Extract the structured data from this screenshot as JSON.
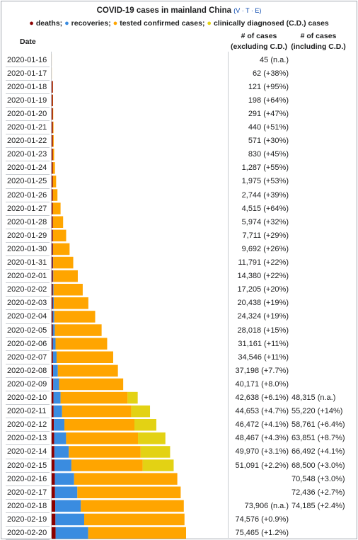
{
  "chart_data": {
    "type": "bar",
    "title": "COVID-19 cases in mainland China",
    "title_links": "V · T · E",
    "legend": [
      {
        "label": "deaths",
        "color": "#8b0000"
      },
      {
        "label": "recoveries",
        "color": "#3a8ce0"
      },
      {
        "label": "tested confirmed cases",
        "color": "#ffa500"
      },
      {
        "label": "clinically diagnosed (C.D.) cases",
        "color": "#e3d214"
      }
    ],
    "columns": {
      "date": "Date",
      "excl": "# of cases (excluding C.D.)",
      "incl": "# of cases (including C.D.)"
    },
    "rows": [
      {
        "date": "2020-01-16",
        "deaths": 0,
        "recovered": 0,
        "confirmed": 45,
        "cd": 0,
        "excl": "45 (n.a.)",
        "incl": ""
      },
      {
        "date": "2020-01-17",
        "deaths": 0,
        "recovered": 0,
        "confirmed": 62,
        "cd": 0,
        "excl": "62 (+38%)",
        "incl": ""
      },
      {
        "date": "2020-01-18",
        "deaths": 3,
        "recovered": 0,
        "confirmed": 118,
        "cd": 0,
        "excl": "121 (+95%)",
        "incl": ""
      },
      {
        "date": "2020-01-19",
        "deaths": 3,
        "recovered": 25,
        "confirmed": 170,
        "cd": 0,
        "excl": "198 (+64%)",
        "incl": ""
      },
      {
        "date": "2020-01-20",
        "deaths": 6,
        "recovered": 25,
        "confirmed": 260,
        "cd": 0,
        "excl": "291 (+47%)",
        "incl": ""
      },
      {
        "date": "2020-01-21",
        "deaths": 9,
        "recovered": 25,
        "confirmed": 406,
        "cd": 0,
        "excl": "440 (+51%)",
        "incl": ""
      },
      {
        "date": "2020-01-22",
        "deaths": 17,
        "recovered": 25,
        "confirmed": 529,
        "cd": 0,
        "excl": "571 (+30%)",
        "incl": ""
      },
      {
        "date": "2020-01-23",
        "deaths": 25,
        "recovered": 34,
        "confirmed": 771,
        "cd": 0,
        "excl": "830 (+45%)",
        "incl": ""
      },
      {
        "date": "2020-01-24",
        "deaths": 41,
        "recovered": 38,
        "confirmed": 1208,
        "cd": 0,
        "excl": "1,287 (+55%)",
        "incl": ""
      },
      {
        "date": "2020-01-25",
        "deaths": 56,
        "recovered": 49,
        "confirmed": 1870,
        "cd": 0,
        "excl": "1,975 (+53%)",
        "incl": ""
      },
      {
        "date": "2020-01-26",
        "deaths": 80,
        "recovered": 51,
        "confirmed": 2613,
        "cd": 0,
        "excl": "2,744 (+39%)",
        "incl": ""
      },
      {
        "date": "2020-01-27",
        "deaths": 106,
        "recovered": 60,
        "confirmed": 4349,
        "cd": 0,
        "excl": "4,515 (+64%)",
        "incl": ""
      },
      {
        "date": "2020-01-28",
        "deaths": 132,
        "recovered": 103,
        "confirmed": 5739,
        "cd": 0,
        "excl": "5,974 (+32%)",
        "incl": ""
      },
      {
        "date": "2020-01-29",
        "deaths": 170,
        "recovered": 124,
        "confirmed": 7417,
        "cd": 0,
        "excl": "7,711 (+29%)",
        "incl": ""
      },
      {
        "date": "2020-01-30",
        "deaths": 213,
        "recovered": 171,
        "confirmed": 9308,
        "cd": 0,
        "excl": "9,692 (+26%)",
        "incl": ""
      },
      {
        "date": "2020-01-31",
        "deaths": 259,
        "recovered": 243,
        "confirmed": 11289,
        "cd": 0,
        "excl": "11,791 (+22%)",
        "incl": ""
      },
      {
        "date": "2020-02-01",
        "deaths": 304,
        "recovered": 328,
        "confirmed": 13748,
        "cd": 0,
        "excl": "14,380 (+22%)",
        "incl": ""
      },
      {
        "date": "2020-02-02",
        "deaths": 361,
        "recovered": 475,
        "confirmed": 16369,
        "cd": 0,
        "excl": "17,205 (+20%)",
        "incl": ""
      },
      {
        "date": "2020-02-03",
        "deaths": 425,
        "recovered": 632,
        "confirmed": 19381,
        "cd": 0,
        "excl": "20,438 (+19%)",
        "incl": ""
      },
      {
        "date": "2020-02-04",
        "deaths": 490,
        "recovered": 892,
        "confirmed": 22942,
        "cd": 0,
        "excl": "24,324 (+19%)",
        "incl": ""
      },
      {
        "date": "2020-02-05",
        "deaths": 563,
        "recovered": 1153,
        "confirmed": 26302,
        "cd": 0,
        "excl": "28,018 (+15%)",
        "incl": ""
      },
      {
        "date": "2020-02-06",
        "deaths": 636,
        "recovered": 1540,
        "confirmed": 28985,
        "cd": 0,
        "excl": "31,161 (+11%)",
        "incl": ""
      },
      {
        "date": "2020-02-07",
        "deaths": 722,
        "recovered": 2050,
        "confirmed": 31774,
        "cd": 0,
        "excl": "34,546 (+11%)",
        "incl": ""
      },
      {
        "date": "2020-02-08",
        "deaths": 811,
        "recovered": 2649,
        "confirmed": 33738,
        "cd": 0,
        "excl": "37,198 (+7.7%)",
        "incl": ""
      },
      {
        "date": "2020-02-09",
        "deaths": 908,
        "recovered": 3281,
        "confirmed": 35982,
        "cd": 0,
        "excl": "40,171 (+8.0%)",
        "incl": ""
      },
      {
        "date": "2020-02-10",
        "deaths": 1016,
        "recovered": 3996,
        "confirmed": 37626,
        "cd": 5677,
        "excl": "42,638 (+6.1%)",
        "incl": "48,315 (n.a.)"
      },
      {
        "date": "2020-02-11",
        "deaths": 1113,
        "recovered": 4740,
        "confirmed": 38800,
        "cd": 10567,
        "excl": "44,653 (+4.7%)",
        "incl": "55,220 (+14%)"
      },
      {
        "date": "2020-02-12",
        "deaths": 1259,
        "recovered": 5911,
        "confirmed": 39302,
        "cd": 12289,
        "excl": "46,472 (+4.1%)",
        "incl": "58,761 (+6.4%)"
      },
      {
        "date": "2020-02-13",
        "deaths": 1380,
        "recovered": 6723,
        "confirmed": 40364,
        "cd": 15384,
        "excl": "48,467 (+4.3%)",
        "incl": "63,851 (+8.7%)"
      },
      {
        "date": "2020-02-14",
        "deaths": 1523,
        "recovered": 8096,
        "confirmed": 40351,
        "cd": 16522,
        "excl": "49,970 (+3.1%)",
        "incl": "66,492 (+4.1%)"
      },
      {
        "date": "2020-02-15",
        "deaths": 1665,
        "recovered": 9419,
        "confirmed": 40007,
        "cd": 17409,
        "excl": "51,091 (+2.2%)",
        "incl": "68,500 (+3.0%)"
      },
      {
        "date": "2020-02-16",
        "deaths": 1770,
        "recovered": 10844,
        "confirmed": 57934,
        "cd": 0,
        "excl": "",
        "incl": "70,548 (+3.0%)"
      },
      {
        "date": "2020-02-17",
        "deaths": 1868,
        "recovered": 12552,
        "confirmed": 58016,
        "cd": 0,
        "excl": "",
        "incl": "72,436 (+2.7%)"
      },
      {
        "date": "2020-02-18",
        "deaths": 2004,
        "recovered": 14376,
        "confirmed": 57805,
        "cd": 0,
        "excl": "73,906 (n.a.)",
        "incl": "74,185 (+2.4%)"
      },
      {
        "date": "2020-02-19",
        "deaths": 2118,
        "recovered": 16155,
        "confirmed": 56303,
        "cd": 0,
        "excl": "74,576 (+0.9%)",
        "incl": ""
      },
      {
        "date": "2020-02-20",
        "deaths": 2236,
        "recovered": 18264,
        "confirmed": 54965,
        "cd": 0,
        "excl": "75,465 (+1.2%)",
        "incl": ""
      }
    ]
  }
}
